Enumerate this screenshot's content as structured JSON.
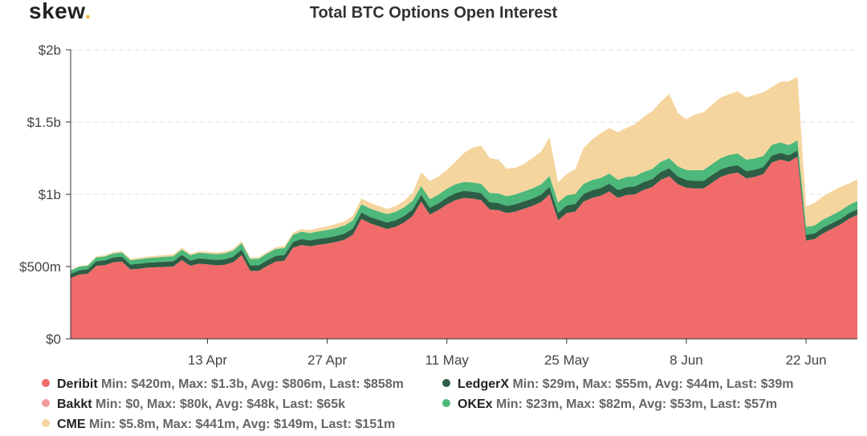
{
  "brand": {
    "name": "skew",
    "suffix": "."
  },
  "colors": {
    "deribit": "#f26b6b",
    "bakkt": "#f09b9b",
    "cme": "#f5d59e",
    "ledgerx": "#2d5e45",
    "okex": "#4cb87a",
    "grid": "#dddddd",
    "axis": "#333333"
  },
  "chart_data": {
    "type": "area",
    "stacked": true,
    "title": "Total BTC Options Open Interest",
    "ylim": [
      0,
      2000
    ],
    "y_unit": "millions USD",
    "y_ticks": [
      {
        "value": 0,
        "label": "$0"
      },
      {
        "value": 500,
        "label": "$500m"
      },
      {
        "value": 1000,
        "label": "$1b"
      },
      {
        "value": 1500,
        "label": "$1.5b"
      },
      {
        "value": 2000,
        "label": "$2b"
      }
    ],
    "x_ticks": [
      {
        "index": 16,
        "label": "13 Apr"
      },
      {
        "index": 30,
        "label": "27 Apr"
      },
      {
        "index": 44,
        "label": "11 May"
      },
      {
        "index": 58,
        "label": "25 May"
      },
      {
        "index": 72,
        "label": "8 Jun"
      },
      {
        "index": 86,
        "label": "22 Jun"
      }
    ],
    "grid": true,
    "legend_position": "bottom",
    "series": [
      {
        "key": "deribit",
        "name": "Deribit",
        "stats": "Min: $420m, Max: $1.3b, Avg: $806m, Last: $858m",
        "values": [
          420,
          445,
          450,
          505,
          510,
          530,
          535,
          480,
          485,
          492,
          495,
          498,
          500,
          545,
          505,
          520,
          515,
          508,
          512,
          530,
          580,
          470,
          470,
          505,
          535,
          540,
          630,
          650,
          640,
          650,
          658,
          670,
          685,
          720,
          830,
          800,
          780,
          760,
          775,
          805,
          850,
          950,
          860,
          890,
          930,
          960,
          975,
          970,
          960,
          895,
          890,
          870,
          880,
          900,
          920,
          945,
          1000,
          820,
          870,
          880,
          950,
          975,
          990,
          1020,
          975,
          995,
          1000,
          1030,
          1050,
          1100,
          1125,
          1070,
          1045,
          1040,
          1040,
          1080,
          1120,
          1140,
          1150,
          1110,
          1120,
          1140,
          1220,
          1240,
          1225,
          1260,
          680,
          690,
          730,
          760,
          790,
          830,
          858
        ]
      },
      {
        "key": "bakkt",
        "name": "Bakkt",
        "stats": "Min: $0, Max: $80k, Avg: $48k, Last: $65k",
        "values": [
          0.01,
          0.01,
          0.01,
          0.02,
          0.02,
          0.02,
          0.03,
          0.03,
          0.03,
          0.03,
          0.03,
          0.04,
          0.04,
          0.04,
          0.04,
          0.04,
          0.04,
          0.04,
          0.04,
          0.04,
          0.05,
          0.05,
          0.05,
          0.05,
          0.05,
          0.05,
          0.05,
          0.05,
          0.05,
          0.05,
          0.05,
          0.05,
          0.05,
          0.05,
          0.05,
          0.05,
          0.05,
          0.05,
          0.05,
          0.05,
          0.05,
          0.05,
          0.05,
          0.05,
          0.05,
          0.05,
          0.05,
          0.05,
          0.05,
          0.05,
          0.05,
          0.05,
          0.05,
          0.05,
          0.05,
          0.05,
          0.05,
          0.05,
          0.05,
          0.05,
          0.05,
          0.06,
          0.06,
          0.06,
          0.06,
          0.06,
          0.06,
          0.06,
          0.06,
          0.06,
          0.06,
          0.06,
          0.06,
          0.06,
          0.06,
          0.06,
          0.07,
          0.07,
          0.07,
          0.07,
          0.07,
          0.07,
          0.07,
          0.08,
          0.07,
          0.07,
          0.06,
          0.06,
          0.06,
          0.06,
          0.06,
          0.06,
          0.065
        ]
      },
      {
        "key": "ledgerx",
        "name": "LedgerX",
        "stats": "Min: $29m, Max: $55m, Avg: $44m, Last: $39m",
        "values": [
          29,
          30,
          31,
          32,
          33,
          33,
          34,
          34,
          35,
          35,
          35,
          36,
          36,
          36,
          37,
          37,
          37,
          38,
          38,
          38,
          39,
          39,
          39,
          40,
          40,
          40,
          41,
          41,
          41,
          42,
          42,
          42,
          43,
          43,
          44,
          44,
          44,
          45,
          45,
          46,
          46,
          47,
          47,
          47,
          48,
          48,
          49,
          49,
          49,
          50,
          50,
          50,
          51,
          51,
          51,
          52,
          52,
          52,
          53,
          53,
          53,
          54,
          54,
          54,
          55,
          55,
          55,
          55,
          55,
          55,
          55,
          54,
          54,
          54,
          53,
          53,
          52,
          52,
          51,
          50,
          50,
          49,
          48,
          47,
          46,
          45,
          40,
          40,
          40,
          39,
          39,
          39,
          39
        ]
      },
      {
        "key": "okex",
        "name": "OKEx",
        "stats": "Min: $23m, Max: $82m, Avg: $53m, Last: $57m",
        "values": [
          23,
          24,
          25,
          26,
          27,
          28,
          29,
          30,
          31,
          32,
          33,
          34,
          35,
          36,
          37,
          38,
          39,
          40,
          41,
          42,
          43,
          44,
          45,
          46,
          47,
          48,
          49,
          50,
          51,
          52,
          53,
          54,
          55,
          56,
          57,
          58,
          58,
          58,
          59,
          59,
          60,
          60,
          60,
          61,
          61,
          62,
          62,
          63,
          64,
          65,
          66,
          67,
          68,
          69,
          70,
          72,
          74,
          72,
          70,
          70,
          70,
          70,
          70,
          70,
          70,
          70,
          70,
          70,
          70,
          70,
          70,
          70,
          70,
          72,
          74,
          76,
          78,
          80,
          82,
          80,
          78,
          76,
          74,
          72,
          70,
          68,
          55,
          55,
          56,
          56,
          57,
          57,
          57
        ]
      },
      {
        "key": "cme",
        "name": "CME",
        "stats": "Min: $5.8m, Max: $441m, Avg: $149m, Last: $151m",
        "values": [
          5.8,
          6,
          6,
          8,
          8,
          9,
          9,
          10,
          10,
          10,
          11,
          12,
          13,
          14,
          10,
          10,
          11,
          12,
          12,
          12,
          14,
          10,
          10,
          10,
          12,
          13,
          15,
          18,
          20,
          22,
          25,
          28,
          30,
          32,
          40,
          40,
          38,
          36,
          40,
          45,
          55,
          95,
          125,
          125,
          130,
          155,
          200,
          240,
          265,
          240,
          235,
          190,
          185,
          190,
          210,
          225,
          270,
          140,
          148,
          170,
          250,
          280,
          310,
          315,
          330,
          340,
          360,
          380,
          400,
          415,
          445,
          370,
          350,
          385,
          400,
          410,
          420,
          420,
          430,
          430,
          440,
          441,
          400,
          420,
          441,
          441,
          140,
          155,
          160,
          165,
          165,
          148,
          151
        ]
      }
    ]
  },
  "legend": [
    {
      "key": "deribit",
      "name": "Deribit",
      "stats": "Min: $420m, Max: $1.3b, Avg: $806m, Last: $858m"
    },
    {
      "key": "bakkt",
      "name": "Bakkt",
      "stats": "Min: $0, Max: $80k, Avg: $48k, Last: $65k"
    },
    {
      "key": "cme",
      "name": "CME",
      "stats": "Min: $5.8m, Max: $441m, Avg: $149m, Last: $151m"
    },
    {
      "key": "ledgerx",
      "name": "LedgerX",
      "stats": "Min: $29m, Max: $55m, Avg: $44m, Last: $39m"
    },
    {
      "key": "okex",
      "name": "OKEx",
      "stats": "Min: $23m, Max: $82m, Avg: $53m, Last: $57m"
    }
  ]
}
